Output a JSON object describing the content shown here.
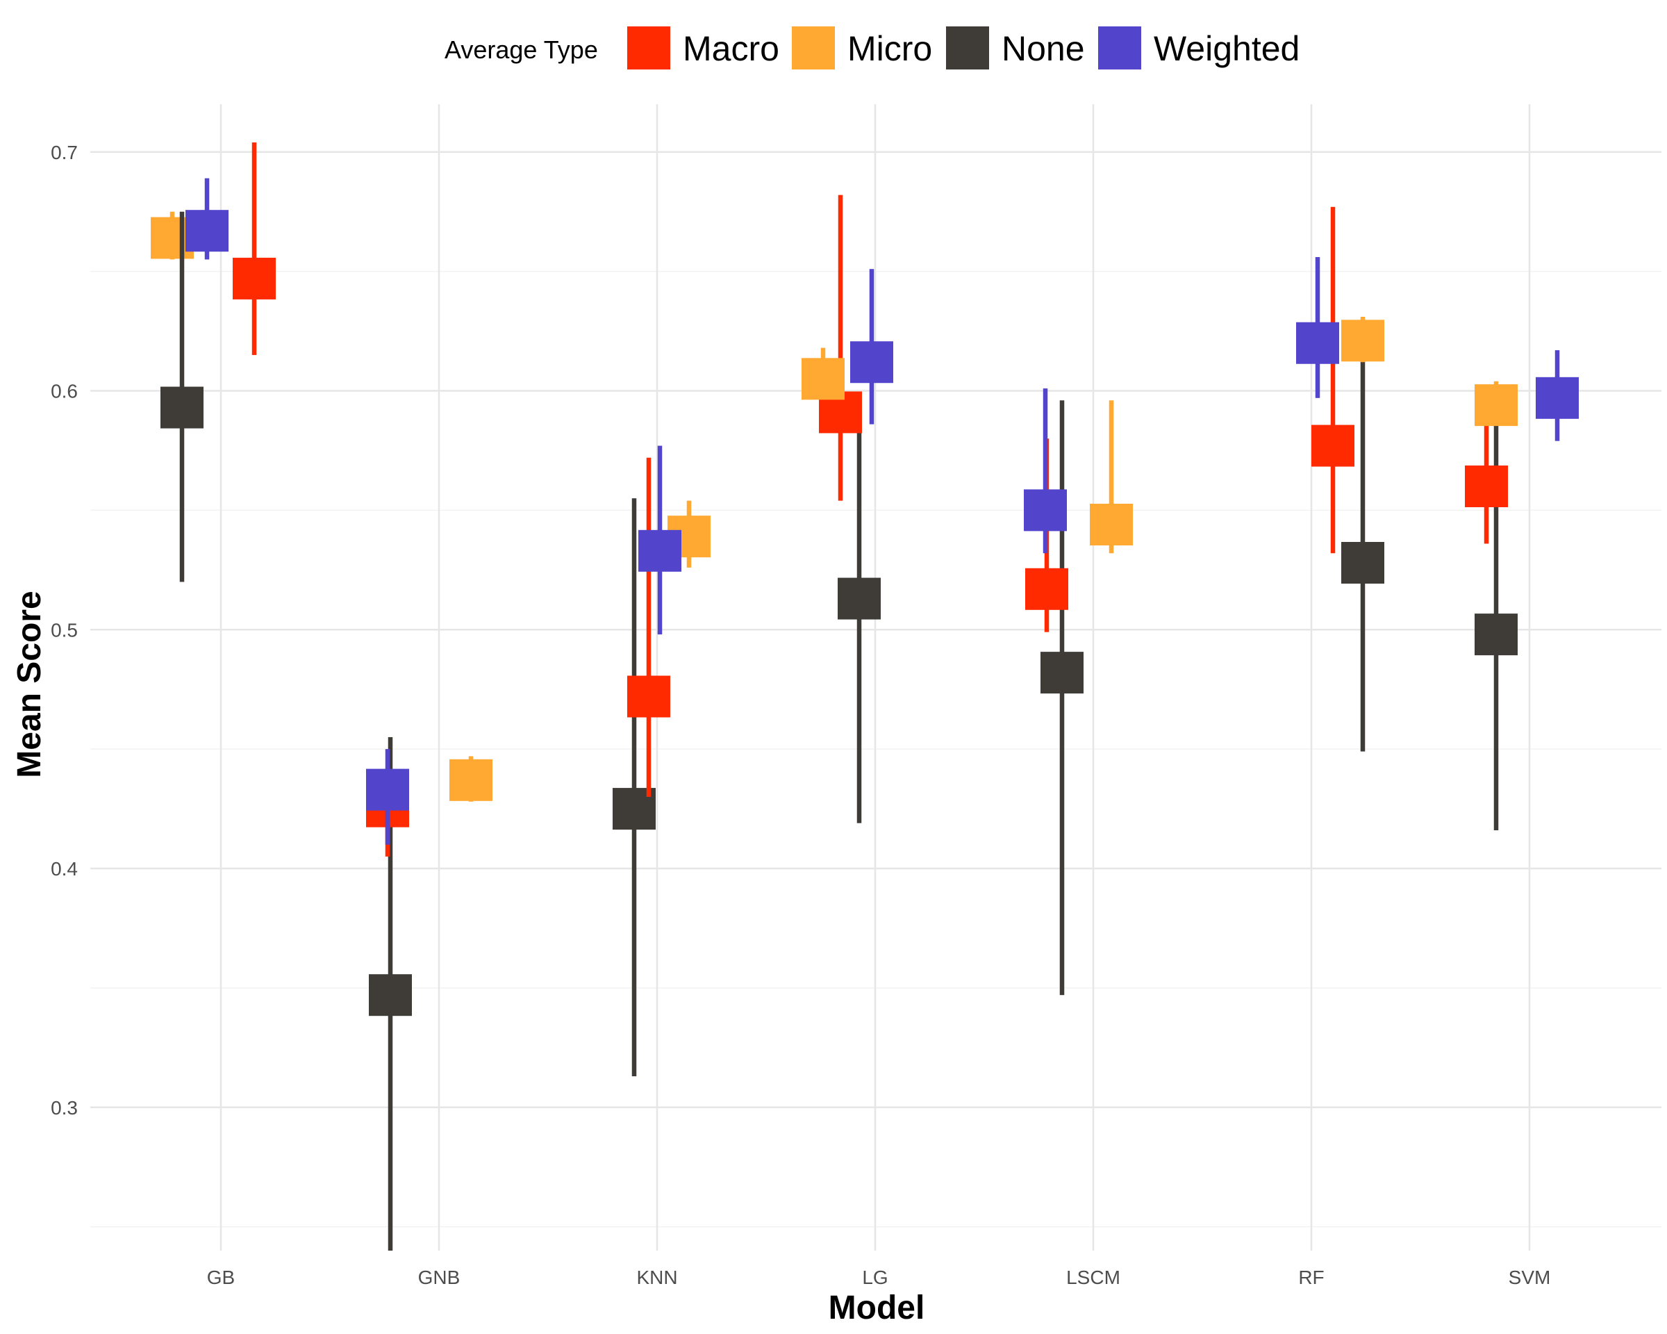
{
  "chart_data": {
    "type": "scatter",
    "title": "",
    "xlabel": "Model",
    "ylabel": "Mean Score",
    "categories": [
      "GB",
      "GNB",
      "KNN",
      "LG",
      "LSCM",
      "RF",
      "SVM"
    ],
    "ylim": [
      0.24,
      0.72
    ],
    "yticks": [
      0.3,
      0.4,
      0.5,
      0.6,
      0.7
    ],
    "ytick_labels": [
      "0.3",
      "0.4",
      "0.5",
      "0.6",
      "0.7"
    ],
    "grid": true,
    "legend": {
      "title": "Average Type",
      "position": "top",
      "entries": [
        "Macro",
        "Micro",
        "None",
        "Weighted"
      ]
    },
    "series": [
      {
        "name": "Macro",
        "color": "#FF2A00",
        "mean": [
          0.647,
          0.426,
          0.472,
          0.591,
          0.517,
          0.577,
          0.56
        ],
        "lower": [
          0.615,
          0.405,
          0.43,
          0.554,
          0.499,
          0.532,
          0.536
        ],
        "upper": [
          0.704,
          0.436,
          0.572,
          0.682,
          0.58,
          0.677,
          0.588
        ]
      },
      {
        "name": "Micro",
        "color": "#FFA832",
        "mean": [
          0.664,
          0.437,
          0.539,
          0.605,
          0.544,
          0.621,
          0.594
        ],
        "lower": [
          0.655,
          0.428,
          0.526,
          0.6,
          0.532,
          0.612,
          0.586
        ],
        "upper": [
          0.675,
          0.447,
          0.554,
          0.618,
          0.596,
          0.631,
          0.604
        ]
      },
      {
        "name": "None",
        "color": "#3F3C38",
        "mean": [
          0.593,
          0.347,
          0.425,
          0.513,
          0.482,
          0.528,
          0.498
        ],
        "lower": [
          0.52,
          0.24,
          0.313,
          0.419,
          0.347,
          0.449,
          0.416
        ],
        "upper": [
          0.675,
          0.455,
          0.555,
          0.598,
          0.596,
          0.62,
          0.588
        ]
      },
      {
        "name": "Weighted",
        "color": "#5344CC",
        "mean": [
          0.667,
          0.433,
          0.533,
          0.612,
          0.55,
          0.62,
          0.597
        ],
        "lower": [
          0.655,
          0.41,
          0.498,
          0.586,
          0.532,
          0.597,
          0.579
        ],
        "upper": [
          0.689,
          0.45,
          0.577,
          0.651,
          0.601,
          0.656,
          0.617
        ]
      }
    ]
  }
}
